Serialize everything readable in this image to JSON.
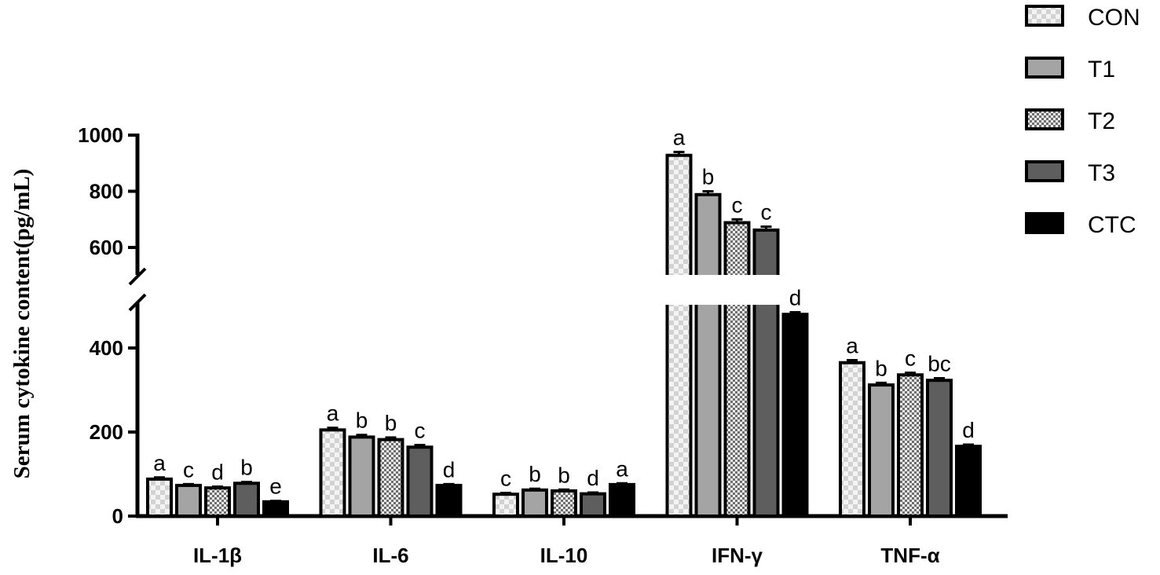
{
  "chart_data": {
    "type": "bar",
    "ylabel": "Serum cytokine content(pg/mL)",
    "xlabel": "",
    "categories": [
      "IL-1β",
      "IL-6",
      "IL-10",
      "IFN-γ",
      "TNF-α"
    ],
    "y_axis_break": [
      500,
      550
    ],
    "ylim": [
      0,
      1000
    ],
    "yticks_lower": [
      0,
      200,
      400
    ],
    "yticks_upper": [
      600,
      800,
      1000
    ],
    "legend_position": "top-right",
    "series": [
      {
        "name": "CON",
        "pattern": "light-checker",
        "values": [
          88,
          205,
          52,
          928,
          365
        ],
        "errors": [
          4,
          5,
          3,
          12,
          6
        ],
        "letters": [
          "a",
          "a",
          "c",
          "a",
          "a"
        ]
      },
      {
        "name": "T1",
        "pattern": "light-gray",
        "values": [
          73,
          188,
          62,
          788,
          312
        ],
        "errors": [
          3,
          5,
          3,
          12,
          5
        ],
        "letters": [
          "c",
          "b",
          "b",
          "b",
          "b"
        ]
      },
      {
        "name": "T2",
        "pattern": "fine-checker",
        "values": [
          67,
          182,
          60,
          688,
          336
        ],
        "errors": [
          3,
          5,
          3,
          12,
          5
        ],
        "letters": [
          "d",
          "b",
          "b",
          "c",
          "c"
        ]
      },
      {
        "name": "T3",
        "pattern": "dark-gray",
        "values": [
          78,
          164,
          53,
          662,
          323
        ],
        "errors": [
          3,
          5,
          3,
          12,
          5
        ],
        "letters": [
          "b",
          "c",
          "d",
          "c",
          "bc"
        ]
      },
      {
        "name": "CTC",
        "pattern": "black",
        "values": [
          34,
          73,
          75,
          480,
          166
        ],
        "errors": [
          2,
          3,
          3,
          5,
          4
        ],
        "letters": [
          "e",
          "d",
          "a",
          "d",
          "d"
        ]
      }
    ]
  }
}
